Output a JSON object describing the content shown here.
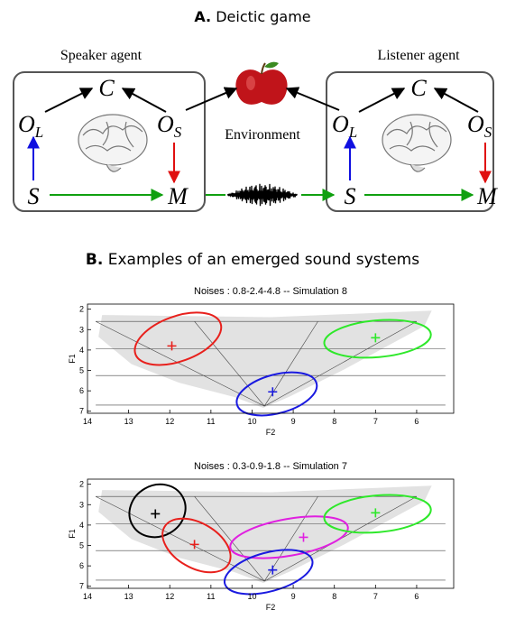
{
  "panel_a": {
    "label": "A.",
    "title": "Deictic game",
    "speaker": {
      "title": "Speaker agent",
      "C": "C",
      "OL": {
        "base": "O",
        "sub": "L"
      },
      "OS": {
        "base": "O",
        "sub": "S"
      },
      "S": "S",
      "M": "M"
    },
    "listener": {
      "title": "Listener agent",
      "C": "C",
      "OL": {
        "base": "O",
        "sub": "L"
      },
      "OS": {
        "base": "O",
        "sub": "S"
      },
      "S": "S",
      "M": "M"
    },
    "environment": "Environment"
  },
  "panel_b": {
    "label": "B.",
    "title": "Examples of an emerged sound systems"
  },
  "chart_data": [
    {
      "type": "scatter",
      "title": "Noises : 0.8-2.4-4.8 -- Simulation 8",
      "x_label": "F2",
      "y_label": "F1",
      "xlim": [
        14,
        5.1
      ],
      "ylim": [
        1.75,
        7.1
      ],
      "xticks": [
        14,
        13,
        12,
        11,
        10,
        9,
        8,
        7,
        6
      ],
      "yticks": [
        2,
        3,
        4,
        5,
        6,
        7
      ],
      "guide_lines": [
        [
          13.8,
          2.6,
          6.0,
          2.6
        ],
        [
          13.8,
          3.95,
          5.3,
          3.95
        ],
        [
          13.8,
          5.25,
          5.3,
          5.25
        ],
        [
          13.8,
          6.7,
          5.3,
          6.7
        ],
        [
          13.8,
          2.6,
          9.7,
          6.75
        ],
        [
          6.0,
          2.6,
          9.7,
          6.75
        ],
        [
          11.4,
          2.6,
          9.7,
          6.75
        ],
        [
          8.4,
          2.6,
          9.7,
          6.75
        ]
      ],
      "clusters": [
        {
          "color": "#e8201c",
          "mean": [
            11.95,
            3.8
          ],
          "ellipse": {
            "cx": 11.8,
            "cy": 3.45,
            "rx": 1.1,
            "ry": 1.1,
            "angle": -20
          }
        },
        {
          "color": "#2ee82a",
          "mean": [
            7.0,
            3.4
          ],
          "ellipse": {
            "cx": 6.95,
            "cy": 3.45,
            "rx": 1.3,
            "ry": 0.9,
            "angle": -5
          }
        },
        {
          "color": "#1a1ae0",
          "mean": [
            9.5,
            6.05
          ],
          "ellipse": {
            "cx": 9.4,
            "cy": 6.15,
            "rx": 1.0,
            "ry": 0.95,
            "angle": -15
          }
        }
      ]
    },
    {
      "type": "scatter",
      "title": "Noises : 0.3-0.9-1.8 -- Simulation 7",
      "x_label": "F2",
      "y_label": "F1",
      "xlim": [
        14,
        5.1
      ],
      "ylim": [
        1.75,
        7.1
      ],
      "xticks": [
        14,
        13,
        12,
        11,
        10,
        9,
        8,
        7,
        6
      ],
      "yticks": [
        2,
        3,
        4,
        5,
        6,
        7
      ],
      "guide_lines": [
        [
          13.8,
          2.6,
          6.0,
          2.6
        ],
        [
          13.8,
          3.95,
          5.3,
          3.95
        ],
        [
          13.8,
          5.25,
          5.3,
          5.25
        ],
        [
          13.8,
          6.7,
          5.3,
          6.7
        ],
        [
          13.8,
          2.6,
          9.7,
          6.75
        ],
        [
          6.0,
          2.6,
          9.7,
          6.75
        ],
        [
          11.4,
          2.6,
          9.7,
          6.75
        ],
        [
          8.4,
          2.6,
          9.7,
          6.75
        ]
      ],
      "clusters": [
        {
          "color": "#000000",
          "mean": [
            12.35,
            3.45
          ],
          "ellipse": {
            "cx": 12.3,
            "cy": 3.3,
            "rx": 0.7,
            "ry": 1.25,
            "angle": -30
          }
        },
        {
          "color": "#e8201c",
          "mean": [
            11.4,
            4.95
          ],
          "ellipse": {
            "cx": 11.35,
            "cy": 5.0,
            "rx": 0.9,
            "ry": 1.1,
            "angle": 30
          }
        },
        {
          "color": "#e020e0",
          "mean": [
            8.75,
            4.6
          ],
          "ellipse": {
            "cx": 9.1,
            "cy": 4.6,
            "rx": 1.45,
            "ry": 0.9,
            "angle": -10
          }
        },
        {
          "color": "#2ee82a",
          "mean": [
            7.0,
            3.4
          ],
          "ellipse": {
            "cx": 6.95,
            "cy": 3.45,
            "rx": 1.3,
            "ry": 0.9,
            "angle": -5
          }
        },
        {
          "color": "#1a1ae0",
          "mean": [
            9.5,
            6.2
          ],
          "ellipse": {
            "cx": 9.6,
            "cy": 6.3,
            "rx": 1.1,
            "ry": 0.95,
            "angle": -15
          }
        }
      ]
    }
  ]
}
